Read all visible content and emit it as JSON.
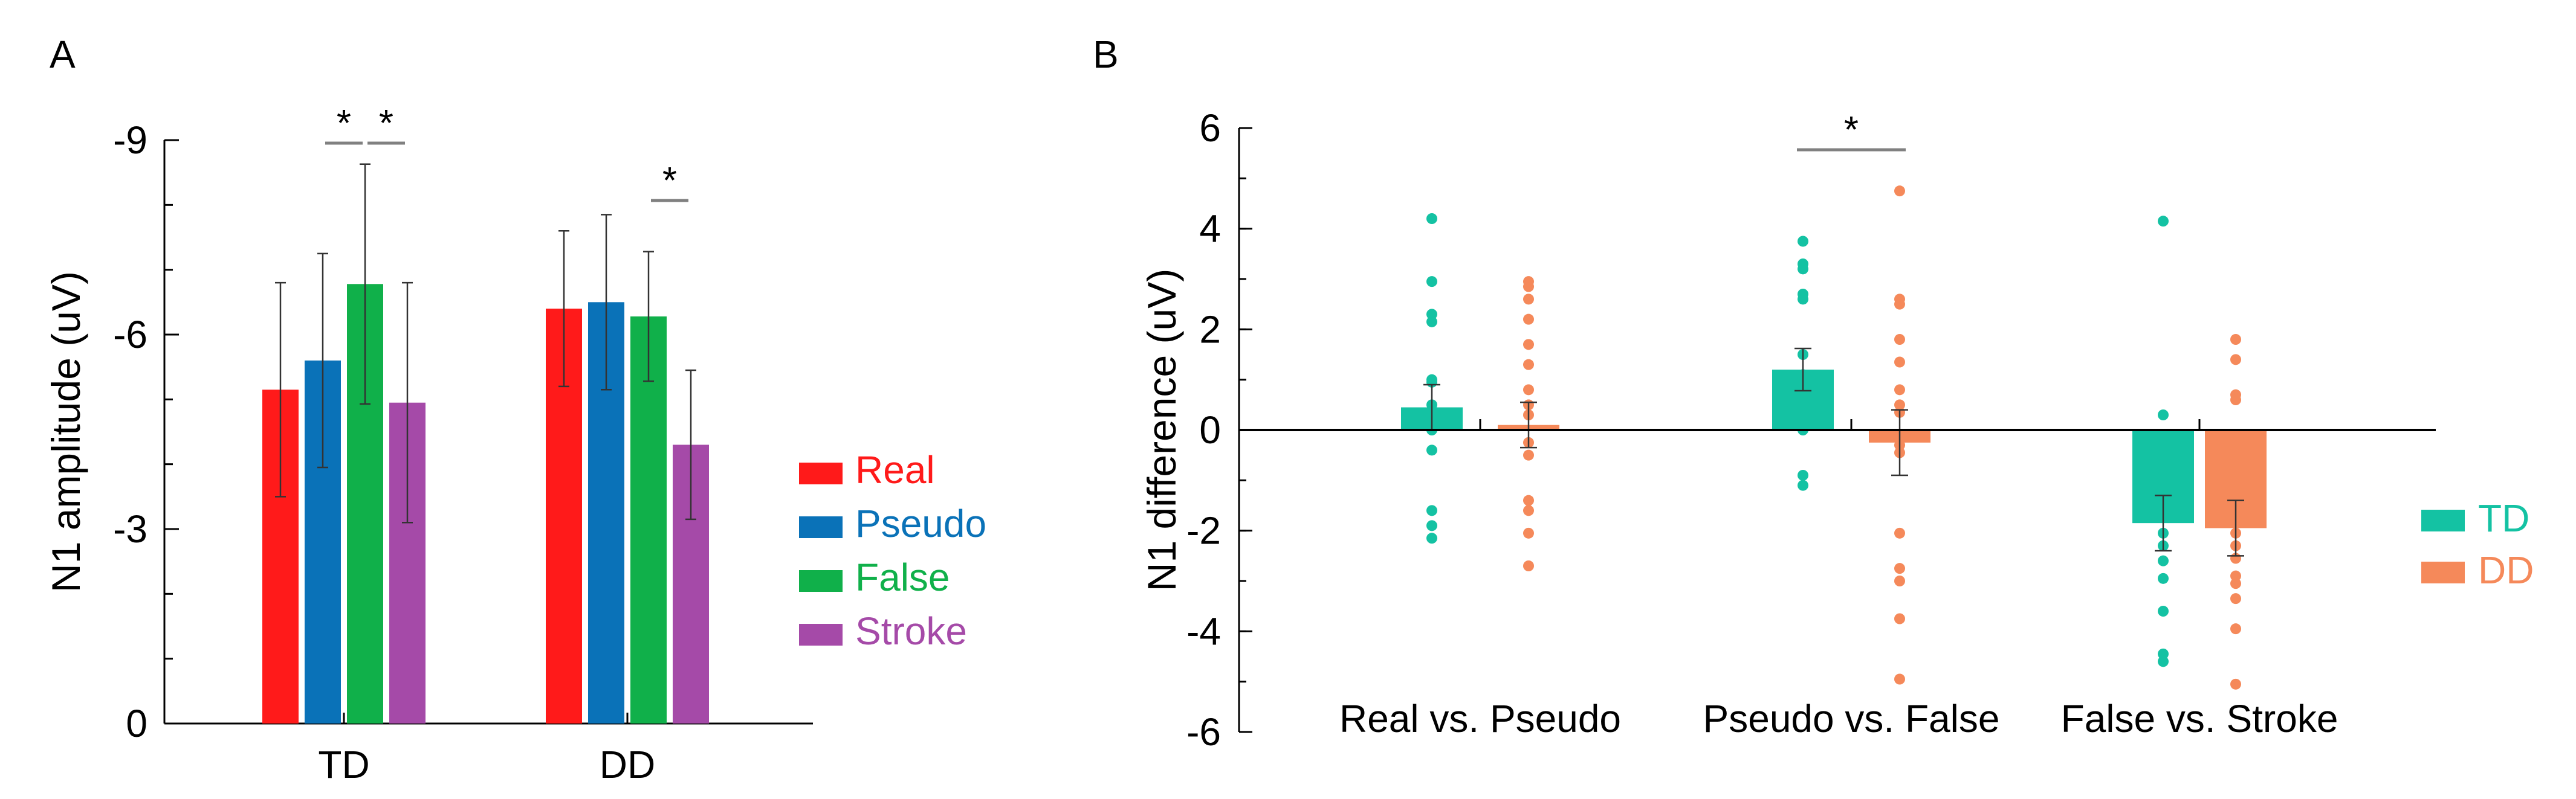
{
  "panels": {
    "a": {
      "letter": "A"
    },
    "b": {
      "letter": "B"
    }
  },
  "chart_data": [
    {
      "type": "bar",
      "ylabel": "N1 amplitude (uV)",
      "xlabel": "",
      "ylim": [
        0,
        -9
      ],
      "yticks": [
        0,
        -3,
        -6,
        -9
      ],
      "ytick_labels": [
        "0",
        "-3",
        "-6",
        "-9"
      ],
      "categories": [
        "TD",
        "DD"
      ],
      "series": [
        {
          "name": "Real",
          "color": "#ff1a1a",
          "values": [
            -5.15,
            -6.4
          ],
          "errors": [
            1.65,
            1.2
          ]
        },
        {
          "name": "Pseudo",
          "color": "#0a72b8",
          "values": [
            -5.6,
            -6.5
          ],
          "errors": [
            1.65,
            1.35
          ]
        },
        {
          "name": "False",
          "color": "#10b04a",
          "values": [
            -6.78,
            -6.28
          ],
          "errors": [
            1.85,
            1.0
          ]
        },
        {
          "name": "Stroke",
          "color": "#a54aa8",
          "values": [
            -4.95,
            -4.3
          ],
          "errors": [
            1.85,
            1.15
          ]
        }
      ],
      "legend_position": "right",
      "significance": [
        {
          "category": "TD",
          "from": "Pseudo",
          "to": "False",
          "label": "*"
        },
        {
          "category": "TD",
          "from": "False",
          "to": "Stroke",
          "label": "*"
        },
        {
          "category": "DD",
          "from": "False",
          "to": "Stroke",
          "label": "*"
        }
      ]
    },
    {
      "type": "bar",
      "ylabel": "N1 difference (uV)",
      "xlabel": "",
      "ylim": [
        -6,
        6
      ],
      "yticks": [
        -6,
        -4,
        -2,
        0,
        2,
        4,
        6
      ],
      "ytick_labels": [
        "-6",
        "-4",
        "-2",
        "0",
        "2",
        "4",
        "6"
      ],
      "categories": [
        "Real vs. Pseudo",
        "Pseudo vs. False",
        "False vs. Stroke"
      ],
      "series": [
        {
          "name": "TD",
          "color": "#14c2a3",
          "values": [
            0.45,
            1.2,
            -1.85
          ],
          "errors": [
            0.45,
            0.42,
            0.55
          ],
          "points": [
            [
              4.2,
              2.95,
              2.3,
              2.15,
              1.0,
              0.95,
              0.5,
              0.0,
              -0.4,
              -1.6,
              -1.9,
              -2.15
            ],
            [
              3.75,
              3.3,
              3.2,
              2.7,
              2.6,
              1.5,
              1.1,
              0.95,
              0.75,
              0.3,
              0.0,
              -0.9,
              -1.1
            ],
            [
              4.15,
              0.3,
              -2.05,
              -2.3,
              -2.6,
              -2.95,
              -3.6,
              -4.45,
              -4.6
            ]
          ]
        },
        {
          "name": "DD",
          "color": "#f5895a",
          "values": [
            0.1,
            -0.25,
            -1.95
          ],
          "errors": [
            0.45,
            0.65,
            0.55
          ],
          "points": [
            [
              2.95,
              2.85,
              2.6,
              2.2,
              1.7,
              1.3,
              0.8,
              0.5,
              0.3,
              -0.25,
              -0.5,
              -1.4,
              -1.6,
              -2.05,
              -2.7
            ],
            [
              4.75,
              2.6,
              2.5,
              1.8,
              1.35,
              0.8,
              0.5,
              0.35,
              -0.3,
              -0.45,
              -2.05,
              -2.75,
              -3.0,
              -3.75,
              -4.95
            ],
            [
              1.8,
              1.4,
              0.7,
              0.6,
              -2.05,
              -2.3,
              -2.55,
              -2.9,
              -3.05,
              -3.35,
              -3.95,
              -5.05
            ]
          ]
        }
      ],
      "legend_position": "right",
      "significance": [
        {
          "category": "Pseudo vs. False",
          "from": "TD",
          "to": "DD",
          "label": "*"
        }
      ]
    }
  ]
}
